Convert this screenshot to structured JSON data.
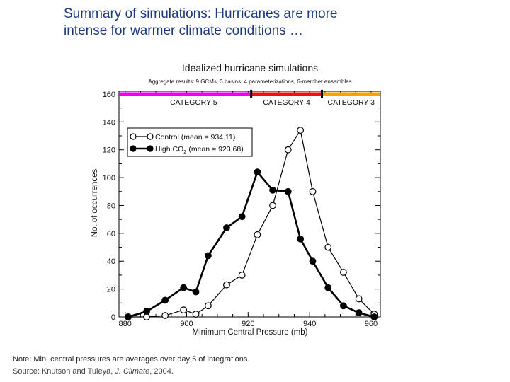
{
  "slide": {
    "title_line1": "Summary of simulations:  Hurricanes are more",
    "title_line2": "intense for warmer climate conditions …",
    "note": "Note: Min. central pressures are averages over day 5 of integrations.",
    "source_prefix": "Source:  Knutson and Tuleya, ",
    "source_journal": "J. Climate",
    "source_suffix": ", 2004."
  },
  "chart_data": {
    "type": "line",
    "title": "Idealized hurricane simulations",
    "subtitle": "Aggregate results:  9 GCMs, 3 basins, 4 parameterizations, 6-member ensembles",
    "xlabel": "Minimum Central Pressure (mb)",
    "ylabel": "No. of occurrences",
    "xlim": [
      878,
      963
    ],
    "ylim": [
      0,
      162
    ],
    "x_ticks": [
      880,
      900,
      920,
      940,
      960
    ],
    "y_ticks": [
      0,
      20,
      40,
      60,
      80,
      100,
      120,
      140,
      160
    ],
    "grid": false,
    "legend_position": "top-left",
    "categories": [
      {
        "label": "CATEGORY 5",
        "from": 878,
        "to": 921,
        "color": "#ee00ee"
      },
      {
        "label": "CATEGORY 4",
        "from": 921,
        "to": 944,
        "color": "#ee1111"
      },
      {
        "label": "CATEGORY 3",
        "from": 944,
        "to": 963,
        "color": "#f5a300"
      },
      {
        "label": "",
        "from": 963,
        "to": 966,
        "color": "#119922"
      }
    ],
    "series": [
      {
        "name": "Control (mean = 934.11)",
        "marker": "open",
        "color": "#000000",
        "x": [
          881,
          887,
          893,
          899,
          903,
          907,
          913,
          918,
          923,
          928,
          933,
          937,
          941,
          946,
          951,
          956,
          961
        ],
        "y": [
          0,
          0,
          1,
          5,
          2,
          8,
          23,
          30,
          59,
          80,
          120,
          134,
          90,
          50,
          32,
          13,
          2
        ]
      },
      {
        "name": "High CO2 (mean = 923.68)",
        "legend_prefix": "High CO",
        "legend_sub": "2",
        "legend_suffix": " (mean = 923.68)",
        "marker": "filled",
        "color": "#000000",
        "x": [
          881,
          887,
          893,
          899,
          903,
          907,
          913,
          918,
          923,
          928,
          933,
          937,
          941,
          946,
          951,
          956,
          961
        ],
        "y": [
          0,
          4,
          12,
          21,
          18,
          44,
          64,
          72,
          104,
          91,
          90,
          56,
          40,
          21,
          8,
          3,
          0
        ]
      }
    ]
  }
}
